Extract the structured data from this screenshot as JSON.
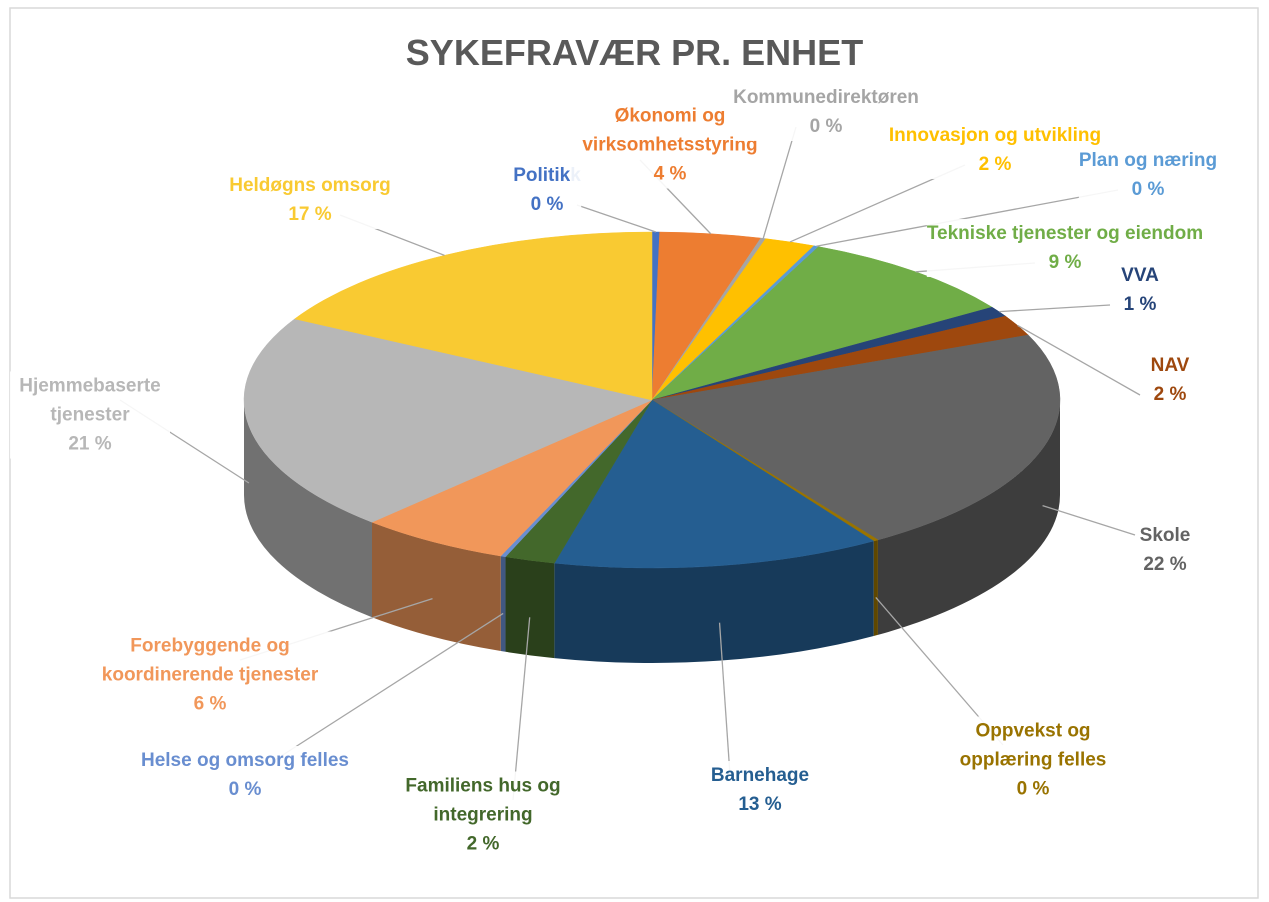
{
  "chart_data": {
    "type": "pie3d",
    "title": "SYKEFRAVÆR PR. ENHET",
    "categories": [
      "Politikk",
      "Økonomi og virksomhetsstyring",
      "Kommunedirektøren",
      "Innovasjon og utvikling",
      "Plan og næring",
      "Tekniske tjenester og eiendom",
      "VVA",
      "NAV",
      "Skole",
      "Oppvekst og opplæring felles",
      "Barnehage",
      "Familiens hus og integrering",
      "Helse og omsorg felles",
      "Forebyggende og koordinerende tjenester",
      "Hjemmebaserte tjenester",
      "Heldøgns omsorg"
    ],
    "values": [
      0.3,
      4,
      0.2,
      2,
      0.2,
      9,
      1,
      2,
      22,
      0.2,
      13,
      2,
      0.2,
      6,
      21,
      17
    ],
    "value_labels": [
      "0 %",
      "4 %",
      "0 %",
      "2 %",
      "0 %",
      "9 %",
      "1 %",
      "2 %",
      "22 %",
      "0 %",
      "13 %",
      "2 %",
      "0 %",
      "6 %",
      "21 %",
      "17 %"
    ],
    "colors": [
      "#4472c4",
      "#ed7d31",
      "#a5a5a5",
      "#ffc000",
      "#5b9bd5",
      "#70ad47",
      "#264478",
      "#9e480e",
      "#636363",
      "#997300",
      "#255e91",
      "#43682b",
      "#698ed0",
      "#f1975a",
      "#b7b7b7",
      "#f9ca32"
    ]
  }
}
